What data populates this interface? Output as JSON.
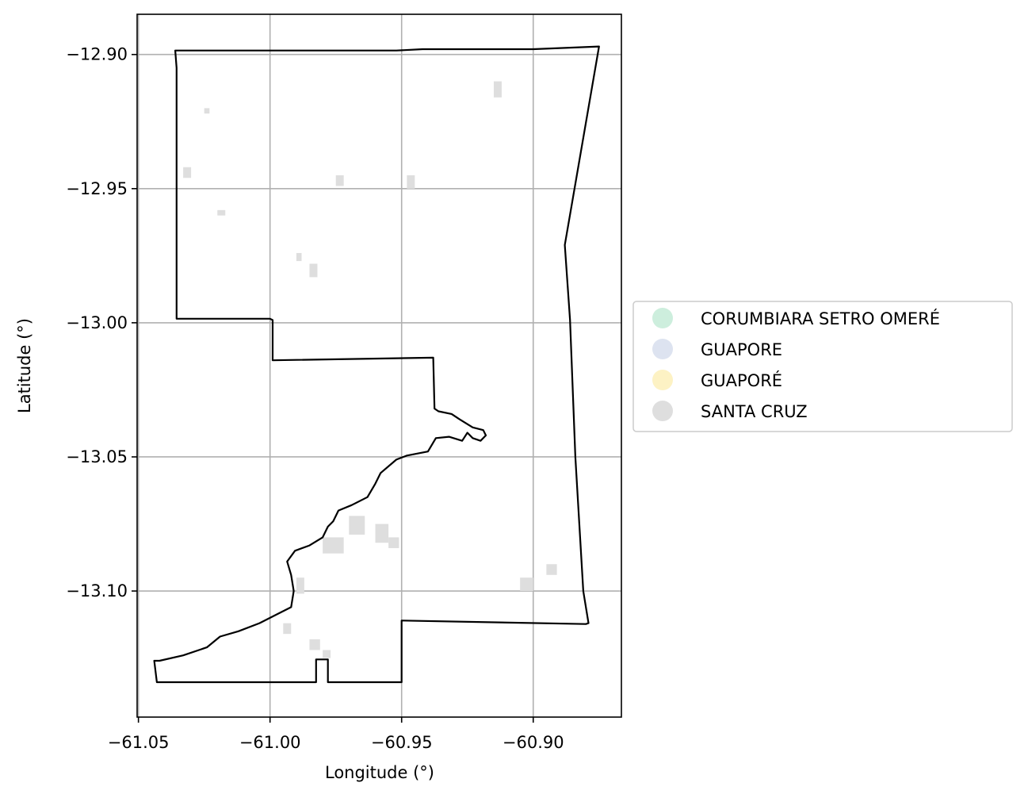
{
  "chart_data": {
    "type": "map",
    "xlabel": "Longitude (°)",
    "ylabel": "Latitude (°)",
    "xlim": [
      -61.0505,
      -60.8665
    ],
    "ylim": [
      -13.147,
      -12.885
    ],
    "grid": true,
    "x_ticks": [
      {
        "value": -61.05,
        "label": "−61.05"
      },
      {
        "value": -61.0,
        "label": "−61.00"
      },
      {
        "value": -60.95,
        "label": "−60.95"
      },
      {
        "value": -60.9,
        "label": "−60.90"
      }
    ],
    "y_ticks": [
      {
        "value": -12.9,
        "label": "−12.90"
      },
      {
        "value": -12.95,
        "label": "−12.95"
      },
      {
        "value": -13.0,
        "label": "−13.00"
      },
      {
        "value": -13.05,
        "label": "−13.05"
      },
      {
        "value": -13.1,
        "label": "−13.10"
      }
    ],
    "legend": {
      "placement": "right",
      "entries": [
        {
          "label": "CORUMBIARA SETRO OMERÉ",
          "color": "#cdeedd"
        },
        {
          "label": "GUAPORE",
          "color": "#dde3f0"
        },
        {
          "label": "GUAPORÉ",
          "color": "#fdf2c4"
        },
        {
          "label": "SANTA CRUZ",
          "color": "#dedede"
        }
      ]
    },
    "boundary_color": "#000000",
    "patch_color": "#dedede",
    "boundary": [
      [
        -61.0355,
        -12.8985
      ],
      [
        -60.952,
        -12.8985
      ],
      [
        -60.942,
        -12.898
      ],
      [
        -60.9,
        -12.898
      ],
      [
        -60.875,
        -12.897
      ],
      [
        -60.888,
        -12.971
      ],
      [
        -60.886,
        -12.999
      ],
      [
        -60.884,
        -13.05
      ],
      [
        -60.881,
        -13.1
      ],
      [
        -60.879,
        -13.112
      ],
      [
        -60.88,
        -13.1123
      ],
      [
        -60.95,
        -13.111
      ],
      [
        -60.95,
        -13.134
      ],
      [
        -60.978,
        -13.134
      ],
      [
        -60.978,
        -13.1255
      ],
      [
        -60.9825,
        -13.1255
      ],
      [
        -60.9825,
        -13.134
      ],
      [
        -61.043,
        -13.134
      ],
      [
        -61.044,
        -13.126
      ],
      [
        -61.042,
        -13.126
      ],
      [
        -61.033,
        -13.124
      ],
      [
        -61.024,
        -13.121
      ],
      [
        -61.019,
        -13.117
      ],
      [
        -61.012,
        -13.115
      ],
      [
        -61.004,
        -13.112
      ],
      [
        -60.998,
        -13.109
      ],
      [
        -60.992,
        -13.106
      ],
      [
        -60.991,
        -13.1
      ],
      [
        -60.992,
        -13.094
      ],
      [
        -60.9935,
        -13.089
      ],
      [
        -60.9905,
        -13.085
      ],
      [
        -60.985,
        -13.083
      ],
      [
        -60.98,
        -13.08
      ],
      [
        -60.978,
        -13.076
      ],
      [
        -60.976,
        -13.074
      ],
      [
        -60.974,
        -13.07
      ],
      [
        -60.969,
        -13.068
      ],
      [
        -60.963,
        -13.065
      ],
      [
        -60.96,
        -13.06
      ],
      [
        -60.958,
        -13.056
      ],
      [
        -60.952,
        -13.051
      ],
      [
        -60.948,
        -13.0495
      ],
      [
        -60.94,
        -13.048
      ],
      [
        -60.937,
        -13.043
      ],
      [
        -60.932,
        -13.0425
      ],
      [
        -60.927,
        -13.044
      ],
      [
        -60.925,
        -13.041
      ],
      [
        -60.923,
        -13.043
      ],
      [
        -60.92,
        -13.044
      ],
      [
        -60.918,
        -13.042
      ],
      [
        -60.919,
        -13.04
      ],
      [
        -60.923,
        -13.039
      ],
      [
        -60.928,
        -13.036
      ],
      [
        -60.931,
        -13.034
      ],
      [
        -60.936,
        -13.033
      ],
      [
        -60.9375,
        -13.032
      ],
      [
        -60.938,
        -13.013
      ],
      [
        -60.999,
        -13.014
      ],
      [
        -60.999,
        -12.999
      ],
      [
        -61.0,
        -12.9985
      ],
      [
        -61.0355,
        -12.9985
      ],
      [
        -61.0355,
        -12.905
      ],
      [
        -61.036,
        -12.8985
      ]
    ],
    "patches": [
      [
        -60.985,
        -12.978,
        0.003,
        0.005
      ],
      [
        -60.99,
        -12.974,
        0.002,
        0.003
      ],
      [
        -60.98,
        -13.08,
        0.008,
        0.006
      ],
      [
        -60.97,
        -13.072,
        0.006,
        0.007
      ],
      [
        -60.96,
        -13.075,
        0.005,
        0.007
      ],
      [
        -60.955,
        -13.08,
        0.004,
        0.004
      ],
      [
        -60.99,
        -13.095,
        0.003,
        0.006
      ],
      [
        -60.985,
        -13.118,
        0.004,
        0.004
      ],
      [
        -60.98,
        -13.122,
        0.003,
        0.003
      ],
      [
        -60.995,
        -13.112,
        0.003,
        0.004
      ],
      [
        -60.915,
        -12.91,
        0.003,
        0.006
      ],
      [
        -60.975,
        -12.945,
        0.003,
        0.004
      ],
      [
        -60.948,
        -12.945,
        0.003,
        0.005
      ],
      [
        -60.905,
        -13.095,
        0.005,
        0.005
      ],
      [
        -60.895,
        -13.09,
        0.004,
        0.004
      ],
      [
        -61.033,
        -12.942,
        0.003,
        0.004
      ],
      [
        -61.02,
        -12.958,
        0.003,
        0.002
      ],
      [
        -61.025,
        -12.92,
        0.002,
        0.002
      ]
    ]
  }
}
